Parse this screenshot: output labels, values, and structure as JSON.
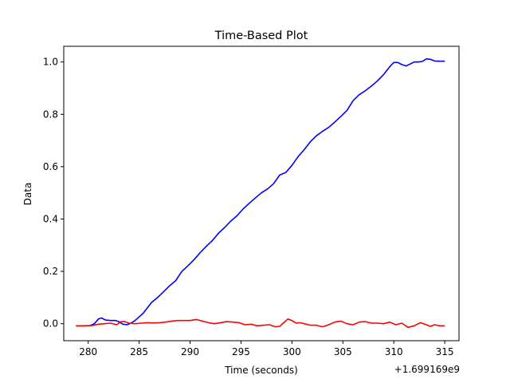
{
  "chart_data": {
    "type": "line",
    "title": "Time-Based Plot",
    "xlabel": "Time (seconds)",
    "ylabel": "Data",
    "x_offset_label": "+1.699169e9",
    "xlim": [
      277.6,
      316.4
    ],
    "ylim": [
      -0.065,
      1.06
    ],
    "xticks": [
      280,
      285,
      290,
      295,
      300,
      305,
      310,
      315
    ],
    "yticks": [
      0.0,
      0.2,
      0.4,
      0.6,
      0.8,
      1.0
    ],
    "grid": false,
    "series": [
      {
        "color": "#0000ff",
        "x": [
          278.8,
          279.5,
          280.2,
          280.6,
          281.0,
          281.3,
          281.7,
          282.2,
          282.7,
          283.0,
          283.4,
          283.8,
          284.2,
          284.6,
          285.0,
          285.4,
          285.8,
          286.2,
          286.8,
          287.4,
          288.0,
          288.6,
          289.2,
          289.8,
          290.4,
          291.0,
          291.6,
          292.2,
          292.8,
          293.4,
          294.0,
          294.6,
          295.2,
          295.8,
          296.4,
          297.0,
          297.6,
          298.2,
          298.8,
          299.4,
          300.0,
          300.6,
          301.2,
          301.8,
          302.4,
          303.0,
          303.6,
          304.2,
          304.8,
          305.4,
          306.0,
          306.6,
          307.2,
          307.8,
          308.4,
          309.0,
          309.6,
          310.0,
          310.4,
          310.8,
          311.2,
          311.6,
          312.0,
          312.4,
          312.8,
          313.2,
          313.6,
          314.0,
          314.5,
          315.0
        ],
        "y": [
          -0.008,
          -0.008,
          -0.007,
          0.0,
          0.018,
          0.022,
          0.014,
          0.012,
          0.012,
          0.008,
          -0.002,
          -0.004,
          0.002,
          0.012,
          0.026,
          0.04,
          0.06,
          0.08,
          0.1,
          0.122,
          0.145,
          0.165,
          0.2,
          0.222,
          0.245,
          0.272,
          0.296,
          0.318,
          0.346,
          0.368,
          0.392,
          0.412,
          0.438,
          0.46,
          0.48,
          0.5,
          0.515,
          0.535,
          0.568,
          0.578,
          0.605,
          0.638,
          0.665,
          0.695,
          0.718,
          0.735,
          0.75,
          0.77,
          0.792,
          0.815,
          0.852,
          0.875,
          0.89,
          0.908,
          0.928,
          0.952,
          0.982,
          0.998,
          0.998,
          0.99,
          0.985,
          0.992,
          1.0,
          1.0,
          1.002,
          1.012,
          1.01,
          1.004,
          1.003,
          1.003
        ]
      },
      {
        "color": "#ff0000",
        "x": [
          278.8,
          279.6,
          280.4,
          281.0,
          281.6,
          282.2,
          282.8,
          283.2,
          283.6,
          284.0,
          284.6,
          285.2,
          285.8,
          286.4,
          287.0,
          287.6,
          288.2,
          288.8,
          289.4,
          290.0,
          290.6,
          291.2,
          291.8,
          292.4,
          293.0,
          293.6,
          294.2,
          294.8,
          295.4,
          296.0,
          296.6,
          297.2,
          297.8,
          298.4,
          298.8,
          299.2,
          299.6,
          300.0,
          300.4,
          300.8,
          301.2,
          301.8,
          302.4,
          303.0,
          303.6,
          304.2,
          304.8,
          305.4,
          306.0,
          306.6,
          307.2,
          307.8,
          308.4,
          309.0,
          309.6,
          310.2,
          310.8,
          311.4,
          312.0,
          312.6,
          313.2,
          313.6,
          314.0,
          314.5,
          315.0
        ],
        "y": [
          -0.008,
          -0.008,
          -0.007,
          -0.002,
          0.0,
          0.002,
          -0.004,
          0.008,
          0.008,
          0.002,
          0.0,
          0.002,
          0.004,
          0.003,
          0.004,
          0.006,
          0.01,
          0.012,
          0.012,
          0.012,
          0.016,
          0.01,
          0.004,
          0.0,
          0.004,
          0.008,
          0.006,
          0.004,
          -0.004,
          -0.002,
          -0.008,
          -0.006,
          -0.004,
          -0.012,
          -0.01,
          0.004,
          0.018,
          0.012,
          0.002,
          0.004,
          0.0,
          -0.006,
          -0.006,
          -0.012,
          -0.004,
          0.006,
          0.01,
          0.0,
          -0.004,
          0.006,
          0.008,
          0.002,
          0.002,
          0.0,
          0.006,
          -0.004,
          0.002,
          -0.014,
          -0.008,
          0.004,
          -0.004,
          -0.01,
          -0.004,
          -0.008,
          -0.008
        ]
      }
    ]
  }
}
